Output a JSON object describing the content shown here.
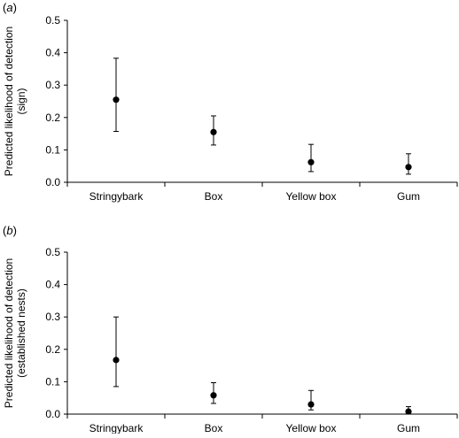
{
  "chart_data": [
    {
      "type": "scatter",
      "panel_label": "a",
      "ylabel_line1": "Predicted likelihood of detection",
      "ylabel_line2": "(sign)",
      "ylim": [
        0,
        0.5
      ],
      "yticks": [
        "0.0",
        "0.1",
        "0.2",
        "0.3",
        "0.4",
        "0.5"
      ],
      "categories": [
        "Stringybark",
        "Box",
        "Yellow box",
        "Gum"
      ],
      "values": [
        0.255,
        0.155,
        0.062,
        0.047
      ],
      "lower": [
        0.157,
        0.115,
        0.033,
        0.025
      ],
      "upper": [
        0.383,
        0.205,
        0.117,
        0.088
      ],
      "error_bars": true,
      "grid": false
    },
    {
      "type": "scatter",
      "panel_label": "b",
      "ylabel_line1": "Predicted likelihood of detection",
      "ylabel_line2": "(established nests)",
      "ylim": [
        0,
        0.5
      ],
      "yticks": [
        "0.0",
        "0.1",
        "0.2",
        "0.3",
        "0.4",
        "0.5"
      ],
      "categories": [
        "Stringybark",
        "Box",
        "Yellow box",
        "Gum"
      ],
      "values": [
        0.167,
        0.058,
        0.03,
        0.008
      ],
      "lower": [
        0.085,
        0.033,
        0.013,
        0.003
      ],
      "upper": [
        0.3,
        0.097,
        0.073,
        0.023
      ],
      "error_bars": true,
      "grid": false
    }
  ]
}
